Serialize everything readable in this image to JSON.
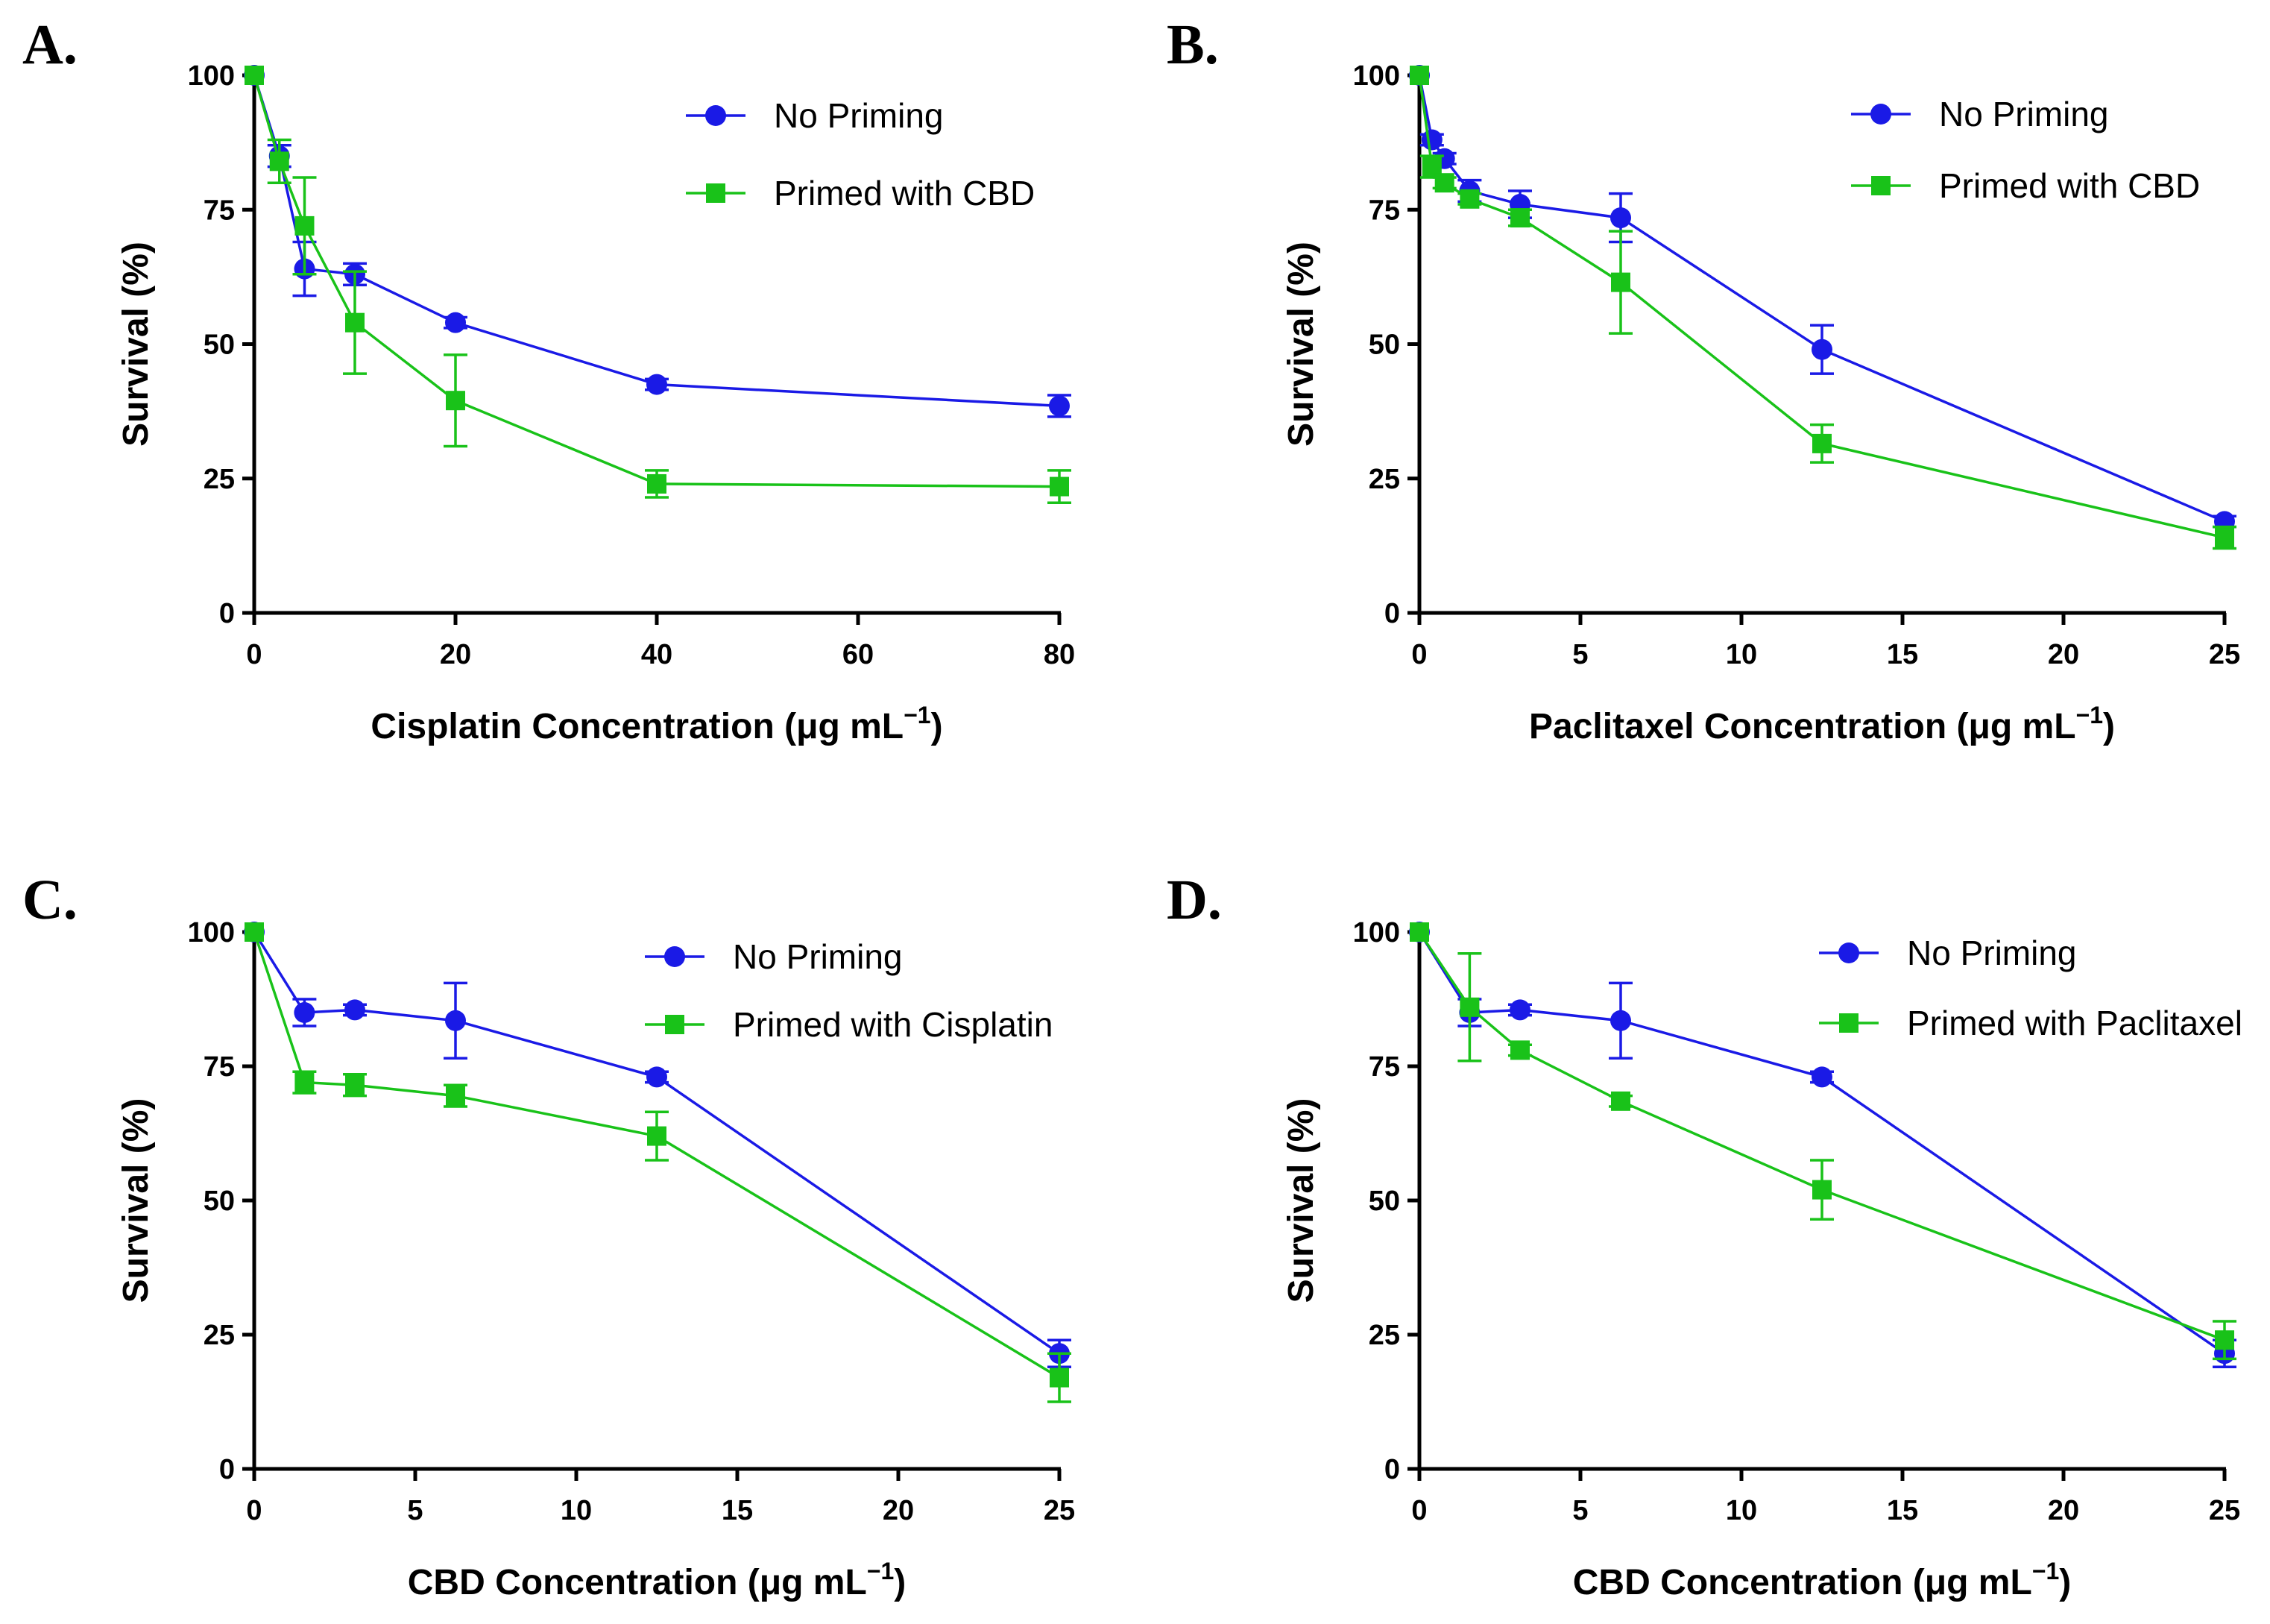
{
  "colors": {
    "no_priming": "#1a1ae6",
    "primed": "#19c219",
    "axis": "#000000"
  },
  "chart_data": [
    {
      "type": "line",
      "panel": "A.",
      "xlabel": "Cisplatin Concentration (μg mL",
      "xlabel_sup": "−1",
      "xlabel_close": ")",
      "ylabel": "Survival (%)",
      "xlim": [
        0,
        80
      ],
      "ylim": [
        0,
        100
      ],
      "xticks": [
        0,
        20,
        40,
        60,
        80
      ],
      "yticks": [
        0,
        25,
        50,
        75,
        100
      ],
      "legend_position": "top-right",
      "series": [
        {
          "name": "No Priming",
          "marker": "circle",
          "x": [
            0,
            2.5,
            5,
            10,
            20,
            40,
            80
          ],
          "y": [
            100,
            85,
            64,
            63,
            54,
            42.5,
            38.5
          ],
          "err": [
            0,
            2,
            5,
            2,
            1,
            1,
            2
          ]
        },
        {
          "name": "Primed with CBD",
          "marker": "square",
          "x": [
            0,
            2.5,
            5,
            10,
            20,
            40,
            80
          ],
          "y": [
            100,
            84,
            72,
            54,
            39.5,
            24,
            23.5
          ],
          "err": [
            0,
            4,
            9,
            9.5,
            8.5,
            2.5,
            3
          ]
        }
      ]
    },
    {
      "type": "line",
      "panel": "B.",
      "xlabel": "Paclitaxel Concentration (μg mL",
      "xlabel_sup": "−1",
      "xlabel_close": ")",
      "ylabel": "Survival (%)",
      "xlim": [
        0,
        25
      ],
      "ylim": [
        0,
        100
      ],
      "xticks": [
        0,
        5,
        10,
        15,
        20,
        25
      ],
      "yticks": [
        0,
        25,
        50,
        75,
        100
      ],
      "legend_position": "top-right",
      "series": [
        {
          "name": "No Priming",
          "marker": "circle",
          "x": [
            0,
            0.39,
            0.78,
            1.56,
            3.125,
            6.25,
            12.5,
            25
          ],
          "y": [
            100,
            88,
            84.5,
            78.5,
            76,
            73.5,
            49,
            17
          ],
          "err": [
            0,
            1,
            1,
            2,
            2.5,
            4.5,
            4.5,
            1
          ]
        },
        {
          "name": "Primed with CBD",
          "marker": "square",
          "x": [
            0,
            0.39,
            0.78,
            1.56,
            3.125,
            6.25,
            12.5,
            25
          ],
          "y": [
            100,
            83,
            80,
            77,
            73.5,
            61.5,
            31.5,
            14
          ],
          "err": [
            0,
            2,
            1,
            1,
            1.5,
            9.5,
            3.5,
            2
          ]
        }
      ]
    },
    {
      "type": "line",
      "panel": "C.",
      "xlabel": "CBD Concentration (μg mL",
      "xlabel_sup": "−1",
      "xlabel_close": ")",
      "ylabel": "Survival (%)",
      "xlim": [
        0,
        25
      ],
      "ylim": [
        0,
        100
      ],
      "xticks": [
        0,
        5,
        10,
        15,
        20,
        25
      ],
      "yticks": [
        0,
        25,
        50,
        75,
        100
      ],
      "legend_position": "top-right",
      "series": [
        {
          "name": "No Priming",
          "marker": "circle",
          "x": [
            0,
            1.56,
            3.125,
            6.25,
            12.5,
            25
          ],
          "y": [
            100,
            85,
            85.5,
            83.5,
            73,
            21.5
          ],
          "err": [
            0,
            2.5,
            1,
            7,
            1,
            2.5
          ]
        },
        {
          "name": "Primed with Cisplatin",
          "marker": "square",
          "x": [
            0,
            1.56,
            3.125,
            6.25,
            12.5,
            25
          ],
          "y": [
            100,
            72,
            71.5,
            69.5,
            62,
            17
          ],
          "err": [
            0,
            2,
            2,
            2,
            4.5,
            4.5
          ]
        }
      ]
    },
    {
      "type": "line",
      "panel": "D.",
      "xlabel": "CBD Concentration (μg mL",
      "xlabel_sup": "−1",
      "xlabel_close": ")",
      "ylabel": "Survival (%)",
      "xlim": [
        0,
        25
      ],
      "ylim": [
        0,
        100
      ],
      "xticks": [
        0,
        5,
        10,
        15,
        20,
        25
      ],
      "yticks": [
        0,
        25,
        50,
        75,
        100
      ],
      "legend_position": "top-right",
      "series": [
        {
          "name": "No Priming",
          "marker": "circle",
          "x": [
            0,
            1.56,
            3.125,
            6.25,
            12.5,
            25
          ],
          "y": [
            100,
            85,
            85.5,
            83.5,
            73,
            21.5
          ],
          "err": [
            0,
            2.5,
            1,
            7,
            1,
            2.5
          ]
        },
        {
          "name": "Primed with Paclitaxel",
          "marker": "square",
          "x": [
            0,
            1.56,
            3.125,
            6.25,
            12.5,
            25
          ],
          "y": [
            100,
            86,
            78,
            68.5,
            52,
            24
          ],
          "err": [
            0,
            10,
            1,
            1,
            5.5,
            3.5
          ]
        }
      ]
    }
  ]
}
